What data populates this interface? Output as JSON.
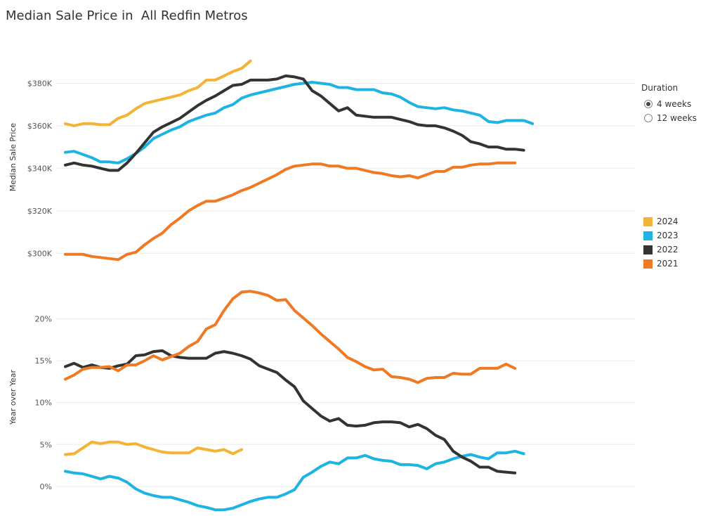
{
  "title": "Median Sale Price in  All Redfin Metros",
  "duration": {
    "label": "Duration",
    "options": [
      {
        "label": "4 weeks",
        "selected": true
      },
      {
        "label": "12 weeks",
        "selected": false
      }
    ]
  },
  "legend": [
    {
      "label": "2024",
      "color": "#F5B335"
    },
    {
      "label": "2023",
      "color": "#1DB3E3"
    },
    {
      "label": "2022",
      "color": "#333333"
    },
    {
      "label": "2021",
      "color": "#F07A24"
    }
  ],
  "chart_data": [
    {
      "type": "line",
      "title": "Median Sale Price",
      "ylabel": "Median Sale Price",
      "ylim": [
        289500,
        401000
      ],
      "yticks": [
        300000,
        320000,
        340000,
        360000,
        380000
      ],
      "ytick_labels": [
        "$300K",
        "$320K",
        "$340K",
        "$360K",
        "$380K"
      ],
      "series": [
        {
          "name": "2024",
          "color": "#F5B335",
          "values": [
            361000,
            360000,
            361000,
            361000,
            360500,
            360500,
            363500,
            365000,
            368000,
            370500,
            371500,
            372500,
            373500,
            374500,
            376500,
            378000,
            381500,
            381500,
            383500,
            385500,
            387000,
            390500
          ]
        },
        {
          "name": "2023",
          "color": "#1DB3E3",
          "values": [
            347500,
            348000,
            346500,
            345000,
            343000,
            343000,
            342500,
            344500,
            347000,
            350000,
            354000,
            356000,
            358000,
            359500,
            362000,
            363500,
            365000,
            366000,
            368500,
            370000,
            373000,
            374500,
            375500,
            376500,
            377500,
            378500,
            379500,
            380000,
            380500,
            380000,
            379500,
            378000,
            378000,
            377000,
            377000,
            377000,
            375500,
            375000,
            373500,
            371000,
            369000,
            368500,
            368000,
            368500,
            367500,
            367000,
            366000,
            365000,
            362000,
            361500,
            362500,
            362500,
            362500,
            361000
          ]
        },
        {
          "name": "2022",
          "color": "#333333",
          "values": [
            341500,
            342500,
            341500,
            341000,
            340000,
            339000,
            339000,
            342500,
            347000,
            352000,
            357000,
            359500,
            361500,
            363500,
            366500,
            369500,
            372000,
            374000,
            376500,
            379000,
            379500,
            381500,
            381500,
            381500,
            382000,
            383500,
            383000,
            382000,
            376500,
            374000,
            370500,
            367000,
            368500,
            365000,
            364500,
            364000,
            364000,
            364000,
            363000,
            362000,
            360500,
            360000,
            360000,
            359000,
            357500,
            355500,
            352500,
            351500,
            350000,
            350000,
            349000,
            349000,
            348500
          ]
        },
        {
          "name": "2021",
          "color": "#F07A24",
          "values": [
            299500,
            299500,
            299500,
            298500,
            298000,
            297500,
            297000,
            299500,
            300500,
            304000,
            307000,
            309500,
            313500,
            316500,
            320000,
            322500,
            324500,
            324500,
            326000,
            327500,
            329500,
            331000,
            333000,
            335000,
            337000,
            339500,
            341000,
            341500,
            342000,
            342000,
            341000,
            341000,
            340000,
            340000,
            339000,
            338000,
            337500,
            336500,
            336000,
            336500,
            335500,
            337000,
            338500,
            338500,
            340500,
            340500,
            341500,
            342000,
            342000,
            342500,
            342500,
            342500
          ]
        }
      ]
    },
    {
      "type": "line",
      "title": "Year over Year",
      "ylabel": "Year over Year",
      "ylim": [
        -3.2,
        24.5
      ],
      "yticks": [
        0,
        5,
        10,
        15,
        20
      ],
      "ytick_labels": [
        "0%",
        "5%",
        "10%",
        "15%",
        "20%"
      ],
      "series": [
        {
          "name": "2024",
          "color": "#F5B335",
          "values": [
            3.8,
            3.9,
            4.6,
            5.3,
            5.1,
            5.3,
            5.3,
            5.0,
            5.1,
            4.7,
            4.4,
            4.1,
            4.0,
            4.0,
            4.0,
            4.6,
            4.4,
            4.2,
            4.4,
            3.9,
            4.4
          ]
        },
        {
          "name": "2023",
          "color": "#1DB3E3",
          "values": [
            1.8,
            1.6,
            1.5,
            1.2,
            0.9,
            1.2,
            1.0,
            0.5,
            -0.3,
            -0.8,
            -1.1,
            -1.3,
            -1.3,
            -1.6,
            -1.9,
            -2.3,
            -2.5,
            -2.8,
            -2.8,
            -2.6,
            -2.2,
            -1.8,
            -1.5,
            -1.3,
            -1.3,
            -0.9,
            -0.4,
            1.1,
            1.7,
            2.4,
            2.9,
            2.7,
            3.4,
            3.4,
            3.7,
            3.3,
            3.1,
            3.0,
            2.6,
            2.6,
            2.5,
            2.1,
            2.7,
            2.9,
            3.3,
            3.6,
            3.8,
            3.5,
            3.3,
            4.0,
            4.0,
            4.2,
            3.9
          ]
        },
        {
          "name": "2022",
          "color": "#333333",
          "values": [
            14.3,
            14.7,
            14.2,
            14.5,
            14.2,
            14.1,
            14.4,
            14.6,
            15.6,
            15.7,
            16.1,
            16.2,
            15.6,
            15.4,
            15.3,
            15.3,
            15.3,
            15.9,
            16.1,
            15.9,
            15.6,
            15.2,
            14.4,
            14.0,
            13.6,
            12.7,
            11.9,
            10.2,
            9.3,
            8.4,
            7.8,
            8.1,
            7.3,
            7.2,
            7.3,
            7.6,
            7.7,
            7.7,
            7.6,
            7.1,
            7.4,
            6.9,
            6.1,
            5.6,
            4.2,
            3.5,
            3.0,
            2.3,
            2.3,
            1.8,
            1.7,
            1.6
          ]
        },
        {
          "name": "2021",
          "color": "#F07A24",
          "values": [
            12.8,
            13.3,
            14.0,
            14.2,
            14.2,
            14.3,
            13.8,
            14.5,
            14.5,
            15.0,
            15.6,
            15.1,
            15.5,
            15.9,
            16.7,
            17.3,
            18.8,
            19.3,
            21.0,
            22.4,
            23.2,
            23.3,
            23.1,
            22.8,
            22.2,
            22.3,
            21.0,
            20.1,
            19.2,
            18.2,
            17.3,
            16.4,
            15.4,
            14.9,
            14.3,
            13.9,
            14.0,
            13.1,
            13.0,
            12.8,
            12.4,
            12.9,
            13.0,
            13.0,
            13.5,
            13.4,
            13.4,
            14.1,
            14.1,
            14.1,
            14.6,
            14.1
          ]
        }
      ]
    }
  ]
}
